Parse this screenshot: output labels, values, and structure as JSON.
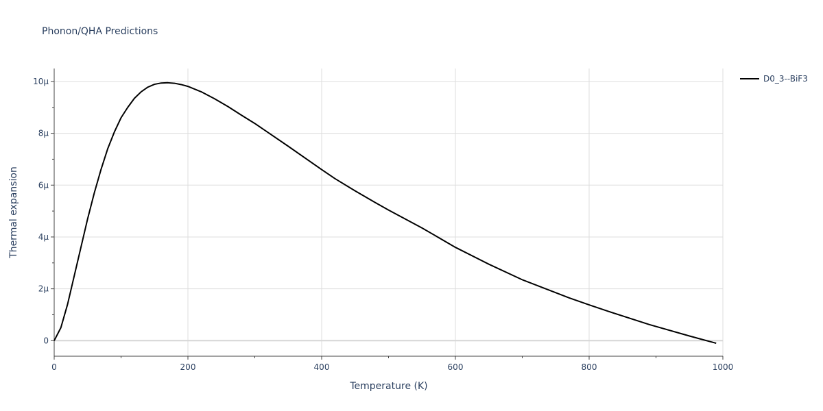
{
  "chart_data": {
    "type": "line",
    "title": "Phonon/QHA Predictions",
    "xlabel": "Temperature (K)",
    "ylabel": "Thermal expansion",
    "xlim": [
      0,
      1000
    ],
    "ylim": [
      -6e-07,
      1.05e-05
    ],
    "x_ticks": [
      0,
      200,
      400,
      600,
      800,
      1000
    ],
    "x_tick_labels": [
      "0",
      "200",
      "400",
      "600",
      "800",
      "1000"
    ],
    "y_ticks": [
      0,
      2e-06,
      4e-06,
      6e-06,
      8e-06,
      1e-05
    ],
    "y_tick_labels": [
      "0",
      "2μ",
      "4μ",
      "6μ",
      "8μ",
      "10μ"
    ],
    "grid": true,
    "legend_position": "top-right",
    "series": [
      {
        "name": "D0_3--BiF3",
        "color": "#000000",
        "x": [
          0,
          10,
          20,
          30,
          40,
          50,
          60,
          70,
          80,
          90,
          100,
          110,
          120,
          130,
          140,
          150,
          160,
          170,
          180,
          190,
          200,
          220,
          240,
          260,
          280,
          300,
          350,
          400,
          420,
          450,
          480,
          500,
          550,
          600,
          650,
          700,
          770,
          800,
          830,
          890,
          950,
          990
        ],
        "y": [
          0,
          5e-07,
          1.4e-06,
          2.5e-06,
          3.6e-06,
          4.7e-06,
          5.7e-06,
          6.6e-06,
          7.4e-06,
          8.05e-06,
          8.6e-06,
          9e-06,
          9.35e-06,
          9.6e-06,
          9.78e-06,
          9.89e-06,
          9.94e-06,
          9.95e-06,
          9.93e-06,
          9.88e-06,
          9.81e-06,
          9.6e-06,
          9.33e-06,
          9.03e-06,
          8.7e-06,
          8.38e-06,
          7.5e-06,
          6.6e-06,
          6.25e-06,
          5.78e-06,
          5.33e-06,
          5.04e-06,
          4.35e-06,
          3.6e-06,
          2.95e-06,
          2.35e-06,
          1.65e-06,
          1.38e-06,
          1.12e-06,
          6.2e-07,
          1.8e-07,
          -1e-07
        ]
      }
    ]
  }
}
